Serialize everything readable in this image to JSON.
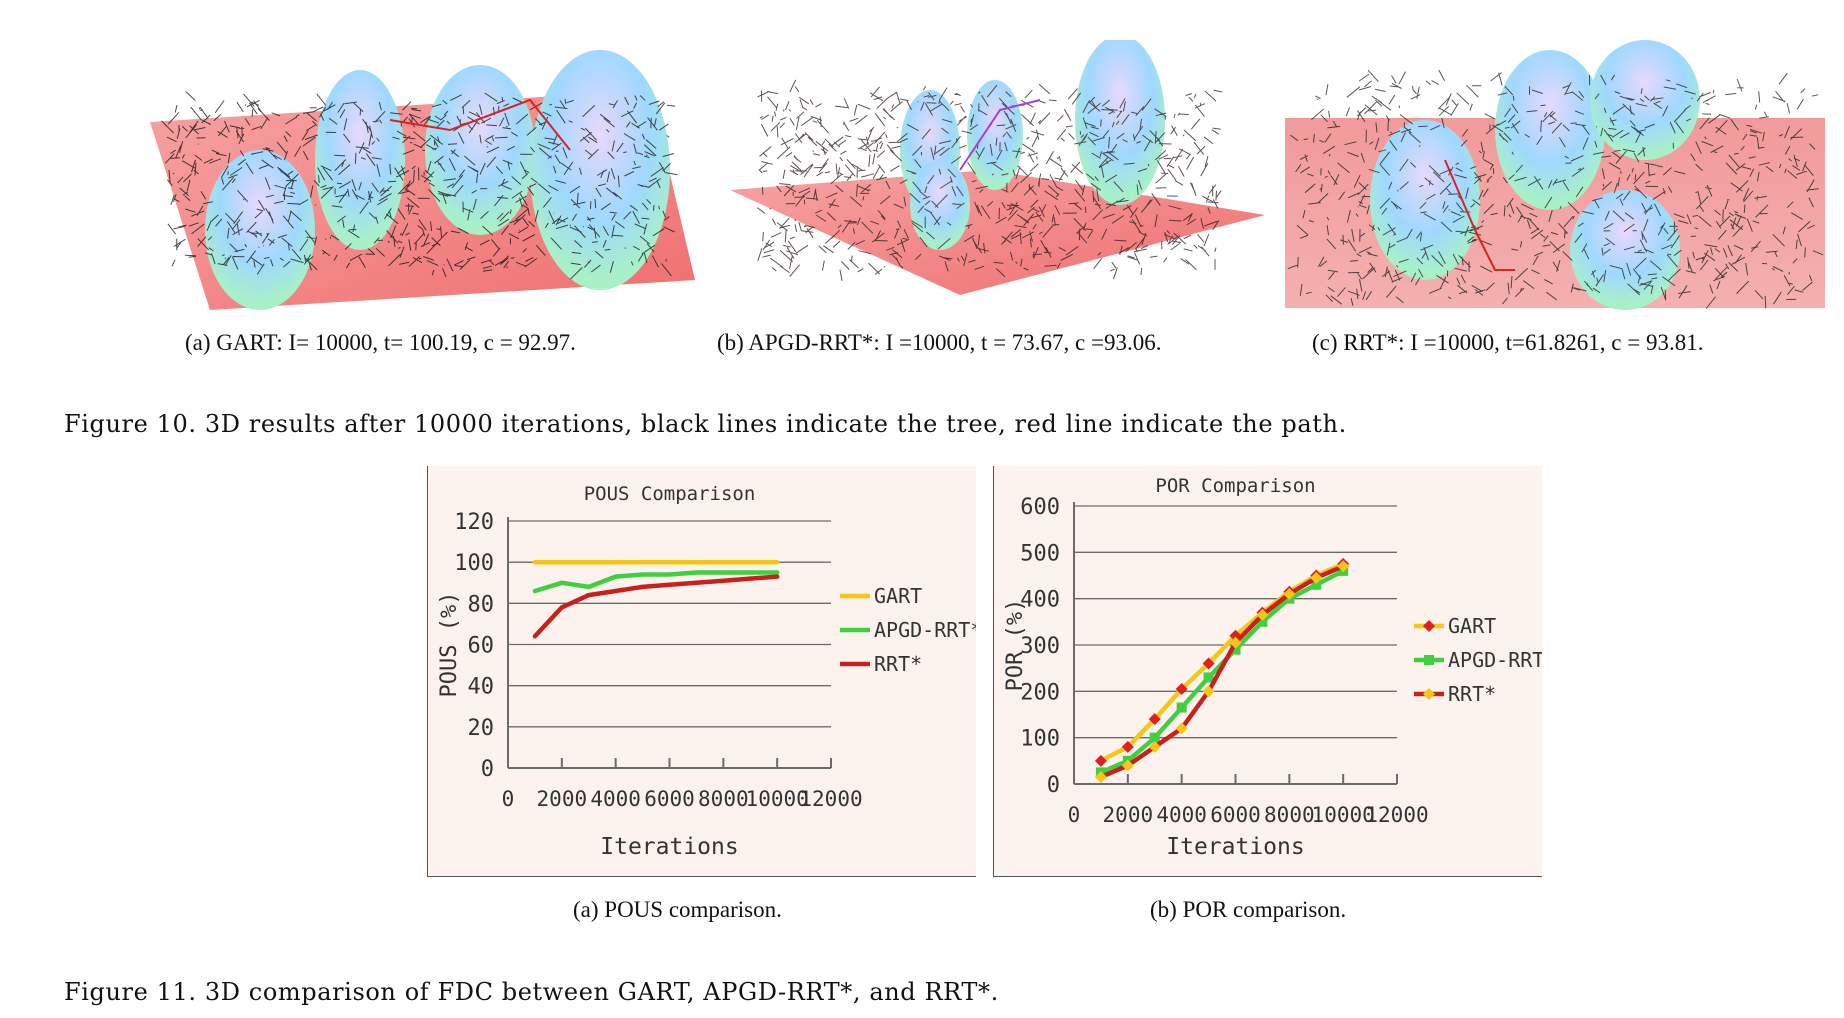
{
  "figure10": {
    "subcaptions": [
      "(a)  GART: I= 10000, t= 100.19, c = 92.97.",
      "(b)  APGD-RRT*: I =10000, t = 73.67, c =93.06.",
      "(c)  RRT*: I =10000, t=61.8261, c = 93.81."
    ],
    "caption": "Figure 10. 3D results after 10000 iterations, black lines indicate the tree, red line indicate the path."
  },
  "figure11": {
    "subcaptions": [
      "(a)  POUS comparison.",
      "(b)  POR comparison."
    ],
    "caption": "Figure 11. 3D comparison of FDC between GART, APGD-RRT*, and RRT*."
  },
  "colors": {
    "GART": "#f5c518",
    "APGD-RRT*": "#3fcf3f",
    "RRT*": "#c8201c",
    "chart_bg": "#fcf3ee"
  },
  "chart_data": [
    {
      "type": "line",
      "title": "POUS Comparison",
      "xlabel": "Iterations",
      "ylabel": "POUS (%)",
      "xlim": [
        0,
        12000
      ],
      "ylim": [
        0,
        120
      ],
      "xticks": [
        "0",
        "2000",
        "4000",
        "6000",
        "8000",
        "10000",
        "12000"
      ],
      "yticks": [
        "0",
        "20",
        "40",
        "60",
        "80",
        "100",
        "120"
      ],
      "grid": true,
      "legend": "right",
      "x": [
        1000,
        2000,
        3000,
        4000,
        5000,
        6000,
        7000,
        8000,
        9000,
        10000
      ],
      "series": [
        {
          "name": "GART",
          "values": [
            100,
            100,
            100,
            100,
            100,
            100,
            100,
            100,
            100,
            100
          ]
        },
        {
          "name": "APGD-RRT*",
          "values": [
            86,
            90,
            88,
            93,
            94,
            94,
            95,
            95,
            95,
            95
          ]
        },
        {
          "name": "RRT*",
          "values": [
            64,
            78,
            84,
            86,
            88,
            89,
            90,
            91,
            92,
            93
          ]
        }
      ]
    },
    {
      "type": "line",
      "title": "POR Comparison",
      "xlabel": "Iterations",
      "ylabel": "POR (%)",
      "xlim": [
        0,
        12000
      ],
      "ylim": [
        0,
        600
      ],
      "xticks": [
        "0",
        "2000",
        "4000",
        "6000",
        "8000",
        "10000",
        "12000"
      ],
      "yticks": [
        "0",
        "100",
        "200",
        "300",
        "400",
        "500",
        "600"
      ],
      "grid": true,
      "legend": "right",
      "x": [
        1000,
        2000,
        3000,
        4000,
        5000,
        6000,
        7000,
        8000,
        9000,
        10000
      ],
      "series": [
        {
          "name": "GART",
          "values": [
            50,
            80,
            140,
            205,
            260,
            320,
            370,
            415,
            450,
            475
          ]
        },
        {
          "name": "APGD-RRT*",
          "values": [
            25,
            50,
            100,
            165,
            230,
            290,
            350,
            400,
            430,
            460
          ]
        },
        {
          "name": "RRT*",
          "values": [
            15,
            40,
            80,
            120,
            200,
            305,
            365,
            410,
            445,
            470
          ]
        }
      ]
    }
  ]
}
